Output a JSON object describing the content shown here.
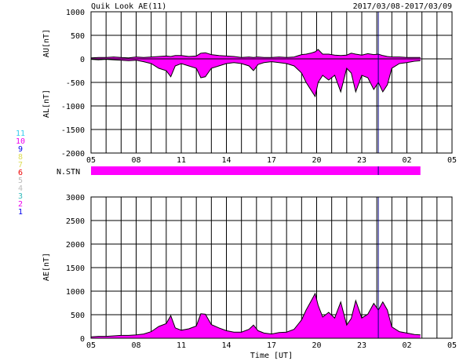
{
  "header": {
    "title": "Quik Look AE(11)",
    "date_range": "2017/03/08-2017/03/09"
  },
  "station_legend": {
    "items": [
      {
        "label": "11",
        "color": "#33ccee"
      },
      {
        "label": "10",
        "color": "#ee00ee"
      },
      {
        "label": "9",
        "color": "#0000ee"
      },
      {
        "label": "8",
        "color": "#dddd55"
      },
      {
        "label": "7",
        "color": "#dddd55"
      },
      {
        "label": "6",
        "color": "#ee0000"
      },
      {
        "label": "5",
        "color": "#bbbbbb"
      },
      {
        "label": "4",
        "color": "#bbbbbb"
      },
      {
        "label": "3",
        "color": "#33bbbb"
      },
      {
        "label": "2",
        "color": "#ee00ee"
      },
      {
        "label": "1",
        "color": "#0000ee"
      }
    ]
  },
  "nstn": {
    "label": "N.STN",
    "color": "#ff00ff",
    "start": 5,
    "end": 26.9,
    "marker": 24.1
  },
  "chart_data": [
    {
      "type": "area",
      "panel": "AU/AL",
      "ylabel_top": "AU[nT]",
      "ylabel_bottom": "AL[nT]",
      "ylim": [
        -2000,
        1000
      ],
      "yticks": [
        "1000",
        "500",
        "0",
        "-500",
        "-1000",
        "-1500",
        "-2000"
      ],
      "ytick_values": [
        1000,
        500,
        0,
        -500,
        -1000,
        -1500,
        -2000
      ],
      "xlim": [
        5,
        29
      ],
      "xticks": [
        "05",
        "08",
        "11",
        "14",
        "17",
        "20",
        "23",
        "02",
        "05"
      ],
      "xtick_values": [
        5,
        8,
        11,
        14,
        17,
        20,
        23,
        26,
        29
      ],
      "grid": true,
      "fill_color": "#ff00ff",
      "marker_x": 24.1,
      "x": [
        5.0,
        5.5,
        6.0,
        6.5,
        7.0,
        7.5,
        8.0,
        8.5,
        9.0,
        9.5,
        10.0,
        10.3,
        10.6,
        11.0,
        11.5,
        12.0,
        12.3,
        12.6,
        13.0,
        13.5,
        14.0,
        14.5,
        15.0,
        15.5,
        15.8,
        16.1,
        16.5,
        17.0,
        17.5,
        18.0,
        18.5,
        19.0,
        19.3,
        19.6,
        19.9,
        20.1,
        20.4,
        20.8,
        21.2,
        21.6,
        22.0,
        22.3,
        22.6,
        23.0,
        23.4,
        23.8,
        24.1,
        24.4,
        24.7,
        25.0,
        25.5,
        26.0,
        26.5,
        26.9
      ],
      "series": [
        {
          "name": "AU",
          "values": [
            20,
            30,
            30,
            40,
            30,
            20,
            40,
            30,
            40,
            50,
            60,
            50,
            70,
            70,
            50,
            60,
            120,
            130,
            90,
            70,
            60,
            50,
            30,
            40,
            30,
            40,
            30,
            30,
            40,
            30,
            40,
            90,
            100,
            120,
            150,
            200,
            100,
            100,
            80,
            70,
            80,
            120,
            100,
            80,
            110,
            90,
            100,
            70,
            50,
            40,
            40,
            30,
            30,
            30
          ]
        },
        {
          "name": "AL",
          "values": [
            -10,
            -20,
            -10,
            -20,
            -30,
            -40,
            -30,
            -60,
            -100,
            -200,
            -250,
            -380,
            -150,
            -100,
            -150,
            -200,
            -400,
            -380,
            -200,
            -150,
            -100,
            -80,
            -100,
            -150,
            -250,
            -120,
            -80,
            -60,
            -80,
            -100,
            -150,
            -300,
            -500,
            -650,
            -800,
            -500,
            -350,
            -450,
            -350,
            -700,
            -200,
            -300,
            -700,
            -350,
            -400,
            -650,
            -500,
            -700,
            -550,
            -200,
            -100,
            -80,
            -50,
            -40
          ]
        }
      ]
    },
    {
      "type": "area",
      "panel": "AE",
      "ylabel": "AE[nT]",
      "xlabel": "Time [UT]",
      "ylim": [
        0,
        3000
      ],
      "yticks": [
        "3000",
        "2500",
        "2000",
        "1500",
        "1000",
        "500",
        "0"
      ],
      "ytick_values": [
        3000,
        2500,
        2000,
        1500,
        1000,
        500,
        0
      ],
      "xlim": [
        5,
        29
      ],
      "xticks": [
        "05",
        "08",
        "11",
        "14",
        "17",
        "20",
        "23",
        "02",
        "05"
      ],
      "xtick_values": [
        5,
        8,
        11,
        14,
        17,
        20,
        23,
        26,
        29
      ],
      "grid": true,
      "fill_color": "#ff00ff",
      "marker_x": 24.1,
      "x": [
        5.0,
        5.5,
        6.0,
        6.5,
        7.0,
        7.5,
        8.0,
        8.5,
        9.0,
        9.5,
        10.0,
        10.3,
        10.6,
        11.0,
        11.5,
        12.0,
        12.3,
        12.6,
        13.0,
        13.5,
        14.0,
        14.5,
        15.0,
        15.5,
        15.8,
        16.1,
        16.5,
        17.0,
        17.5,
        18.0,
        18.5,
        19.0,
        19.3,
        19.6,
        19.9,
        20.1,
        20.4,
        20.8,
        21.2,
        21.6,
        22.0,
        22.3,
        22.6,
        23.0,
        23.4,
        23.8,
        24.1,
        24.4,
        24.7,
        25.0,
        25.5,
        26.0,
        26.5,
        26.9
      ],
      "series": [
        {
          "name": "AE",
          "values": [
            30,
            40,
            40,
            50,
            60,
            60,
            70,
            90,
            140,
            250,
            310,
            480,
            220,
            170,
            200,
            260,
            520,
            510,
            290,
            220,
            160,
            130,
            130,
            190,
            280,
            160,
            110,
            90,
            120,
            130,
            190,
            390,
            600,
            770,
            950,
            700,
            450,
            550,
            430,
            770,
            280,
            420,
            800,
            430,
            510,
            740,
            600,
            770,
            600,
            240,
            140,
            110,
            80,
            70
          ]
        }
      ]
    }
  ]
}
